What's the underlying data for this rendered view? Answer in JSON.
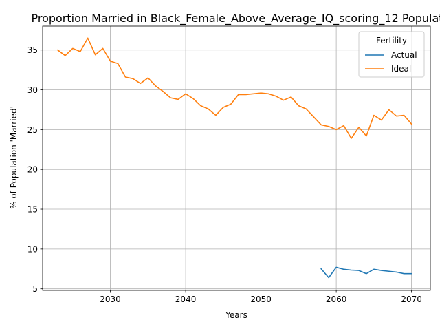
{
  "chart_data": {
    "type": "line",
    "title": "Proportion Married in Black_Female_Above_Average_IQ_scoring_12 Populat",
    "xlabel": "Years",
    "ylabel": "% of Population 'Married'",
    "xlim": [
      2021,
      2072.5
    ],
    "ylim": [
      4.8,
      38.0
    ],
    "xticks": [
      2030,
      2040,
      2050,
      2060,
      2070
    ],
    "yticks": [
      5,
      10,
      15,
      20,
      25,
      30,
      35
    ],
    "grid": true,
    "legend": {
      "title": "Fertility",
      "placement": "top-right"
    },
    "series": [
      {
        "name": "Actual",
        "color": "#1f77b4",
        "x": [
          2058,
          2059,
          2060,
          2061,
          2062,
          2063,
          2064,
          2065,
          2066,
          2067,
          2068,
          2069,
          2070
        ],
        "values": [
          7.5,
          6.4,
          7.7,
          7.45,
          7.35,
          7.3,
          6.9,
          7.45,
          7.3,
          7.2,
          7.1,
          6.9,
          6.9
        ]
      },
      {
        "name": "Ideal",
        "color": "#ff7f0e",
        "x": [
          2023,
          2024,
          2025,
          2026,
          2027,
          2028,
          2029,
          2030,
          2031,
          2032,
          2033,
          2034,
          2035,
          2036,
          2037,
          2038,
          2039,
          2040,
          2041,
          2042,
          2043,
          2044,
          2045,
          2046,
          2047,
          2048,
          2049,
          2050,
          2051,
          2052,
          2053,
          2054,
          2055,
          2056,
          2057,
          2058,
          2059,
          2060,
          2061,
          2062,
          2063,
          2064,
          2065,
          2066,
          2067,
          2068,
          2069,
          2070
        ],
        "values": [
          35.0,
          34.3,
          35.2,
          34.8,
          36.5,
          34.4,
          35.2,
          33.6,
          33.3,
          31.6,
          31.4,
          30.8,
          31.5,
          30.5,
          29.8,
          29.0,
          28.8,
          29.5,
          28.9,
          28.0,
          27.6,
          26.8,
          27.8,
          28.2,
          29.4,
          29.4,
          29.5,
          29.6,
          29.5,
          29.2,
          28.7,
          29.1,
          28.0,
          27.6,
          26.6,
          25.6,
          25.4,
          25.0,
          25.5,
          23.9,
          25.3,
          24.2,
          26.8,
          26.2,
          27.5,
          26.7,
          26.8,
          25.7
        ]
      }
    ]
  }
}
